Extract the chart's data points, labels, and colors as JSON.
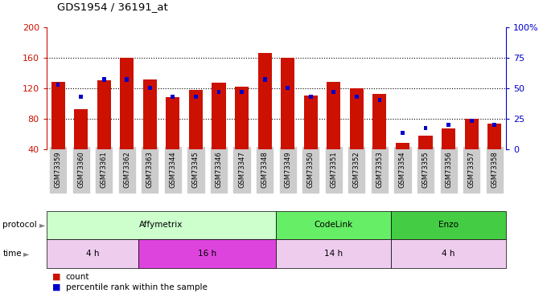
{
  "title": "GDS1954 / 36191_at",
  "samples": [
    "GSM73359",
    "GSM73360",
    "GSM73361",
    "GSM73362",
    "GSM73363",
    "GSM73344",
    "GSM73345",
    "GSM73346",
    "GSM73347",
    "GSM73348",
    "GSM73349",
    "GSM73350",
    "GSM73351",
    "GSM73352",
    "GSM73353",
    "GSM73354",
    "GSM73355",
    "GSM73356",
    "GSM73357",
    "GSM73358"
  ],
  "count": [
    128,
    92,
    130,
    160,
    131,
    108,
    118,
    127,
    122,
    166,
    160,
    110,
    128,
    120,
    112,
    48,
    57,
    67,
    80,
    73
  ],
  "percentile": [
    53,
    43,
    57,
    57,
    50,
    43,
    43,
    47,
    47,
    57,
    50,
    43,
    47,
    43,
    40,
    13,
    17,
    20,
    23,
    20
  ],
  "ylim_left": [
    40,
    200
  ],
  "ylim_right": [
    0,
    100
  ],
  "yticks_left": [
    40,
    80,
    120,
    160,
    200
  ],
  "yticks_right": [
    0,
    25,
    50,
    75,
    100
  ],
  "bar_color": "#cc1100",
  "dot_color": "#0000cc",
  "bg_color": "#ffffff",
  "grid_lines": [
    80,
    120,
    160
  ],
  "protocol_groups": [
    {
      "label": "Affymetrix",
      "start": 0,
      "end": 9,
      "color": "#ccffcc"
    },
    {
      "label": "CodeLink",
      "start": 10,
      "end": 14,
      "color": "#66ee66"
    },
    {
      "label": "Enzo",
      "start": 15,
      "end": 19,
      "color": "#44cc44"
    }
  ],
  "time_groups": [
    {
      "label": "4 h",
      "start": 0,
      "end": 3,
      "color": "#eeccee"
    },
    {
      "label": "16 h",
      "start": 4,
      "end": 9,
      "color": "#dd44dd"
    },
    {
      "label": "14 h",
      "start": 10,
      "end": 14,
      "color": "#eeccee"
    },
    {
      "label": "4 h",
      "start": 15,
      "end": 19,
      "color": "#eeccee"
    }
  ],
  "legend_items": [
    {
      "label": "count",
      "color": "#cc1100"
    },
    {
      "label": "percentile rank within the sample",
      "color": "#0000cc"
    }
  ]
}
